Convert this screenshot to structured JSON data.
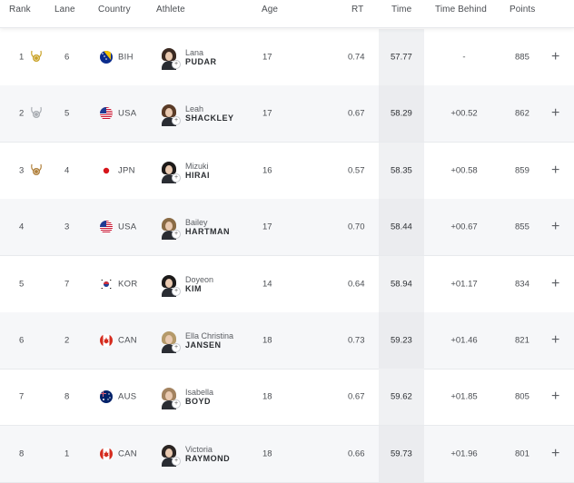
{
  "header": {
    "rank": "Rank",
    "lane": "Lane",
    "country": "Country",
    "athlete": "Athlete",
    "age": "Age",
    "rt": "RT",
    "time": "Time",
    "time_behind": "Time Behind",
    "points": "Points"
  },
  "rows": [
    {
      "rank": "1",
      "medal": "gold",
      "lane": "6",
      "country": "BIH",
      "flag": "bih-flag",
      "first": "Lana",
      "last": "PUDAR",
      "age": "17",
      "rt": "0.74",
      "time": "57.77",
      "behind": "-",
      "points": "885",
      "action": "+"
    },
    {
      "rank": "2",
      "medal": "silver",
      "lane": "5",
      "country": "USA",
      "flag": "usa-flag",
      "first": "Leah",
      "last": "SHACKLEY",
      "age": "17",
      "rt": "0.67",
      "time": "58.29",
      "behind": "+00.52",
      "points": "862",
      "action": "+"
    },
    {
      "rank": "3",
      "medal": "bronze",
      "lane": "4",
      "country": "JPN",
      "flag": "jpn-flag",
      "first": "Mizuki",
      "last": "HIRAI",
      "age": "16",
      "rt": "0.57",
      "time": "58.35",
      "behind": "+00.58",
      "points": "859",
      "action": "+"
    },
    {
      "rank": "4",
      "medal": "",
      "lane": "3",
      "country": "USA",
      "flag": "usa-flag",
      "first": "Bailey",
      "last": "HARTMAN",
      "age": "17",
      "rt": "0.70",
      "time": "58.44",
      "behind": "+00.67",
      "points": "855",
      "action": "+"
    },
    {
      "rank": "5",
      "medal": "",
      "lane": "7",
      "country": "KOR",
      "flag": "kor-flag",
      "first": "Doyeon",
      "last": "KIM",
      "age": "14",
      "rt": "0.64",
      "time": "58.94",
      "behind": "+01.17",
      "points": "834",
      "action": "+"
    },
    {
      "rank": "6",
      "medal": "",
      "lane": "2",
      "country": "CAN",
      "flag": "can-flag",
      "first": "Ella Christina",
      "last": "JANSEN",
      "age": "18",
      "rt": "0.73",
      "time": "59.23",
      "behind": "+01.46",
      "points": "821",
      "action": "+"
    },
    {
      "rank": "7",
      "medal": "",
      "lane": "8",
      "country": "AUS",
      "flag": "aus-flag",
      "first": "Isabella",
      "last": "BOYD",
      "age": "18",
      "rt": "0.67",
      "time": "59.62",
      "behind": "+01.85",
      "points": "805",
      "action": "+"
    },
    {
      "rank": "8",
      "medal": "",
      "lane": "1",
      "country": "CAN",
      "flag": "can-flag",
      "first": "Victoria",
      "last": "RAYMOND",
      "age": "18",
      "rt": "0.66",
      "time": "59.73",
      "behind": "+01.96",
      "points": "801",
      "action": "+"
    }
  ],
  "colors": {
    "gold": "#c9a227",
    "silver": "#a9adb3",
    "bronze": "#b0803c"
  }
}
